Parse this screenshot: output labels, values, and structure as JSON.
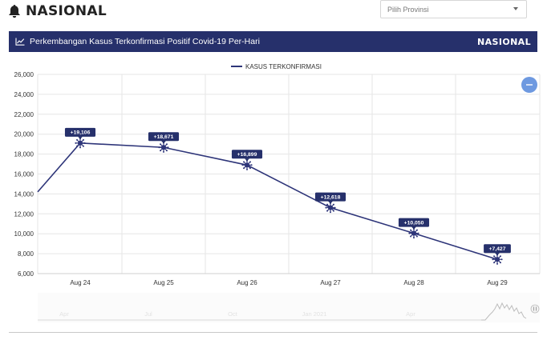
{
  "page": {
    "title": "NASIONAL",
    "title_icon": "bell-icon"
  },
  "province_select": {
    "placeholder": "Pilih Provinsi"
  },
  "header": {
    "icon": "line-chart-icon",
    "title": "Perkembangan Kasus Terkonfirmasi Positif Covid-19 Per-Hari",
    "scope": "NASIONAL"
  },
  "colors": {
    "header_bg": "#26306b",
    "series_line": "#2e3579",
    "label_bg": "#26306b",
    "zoom_button": "#6e99e0",
    "grid": "#e6e6e6"
  },
  "zoom_button": {
    "icon": "minus-icon"
  },
  "navigator": {
    "labels": [
      "Apr",
      "Jul",
      "Oct",
      "Jan 2021",
      "Apr"
    ]
  },
  "chart_data": {
    "type": "line",
    "categories": [
      "Aug 24",
      "Aug 25",
      "Aug 26",
      "Aug 27",
      "Aug 28",
      "Aug 29"
    ],
    "series": [
      {
        "name": "KASUS TERKONFIRMASI",
        "values": [
          19106,
          18671,
          16899,
          12618,
          10050,
          7427
        ],
        "data_labels": [
          "+19,106",
          "+18,671",
          "+16,899",
          "+12,618",
          "+10,050",
          "+7,427"
        ],
        "marker": "virus-icon"
      }
    ],
    "leading_value": 14200,
    "ylim": [
      6000,
      26000
    ],
    "y_ticks": [
      "6,000",
      "8,000",
      "10,000",
      "12,000",
      "14,000",
      "16,000",
      "18,000",
      "20,000",
      "22,000",
      "24,000",
      "26,000"
    ],
    "y_tick_values": [
      6000,
      8000,
      10000,
      12000,
      14000,
      16000,
      18000,
      20000,
      22000,
      24000,
      26000
    ],
    "grid": true,
    "legend_position": "top-center"
  }
}
